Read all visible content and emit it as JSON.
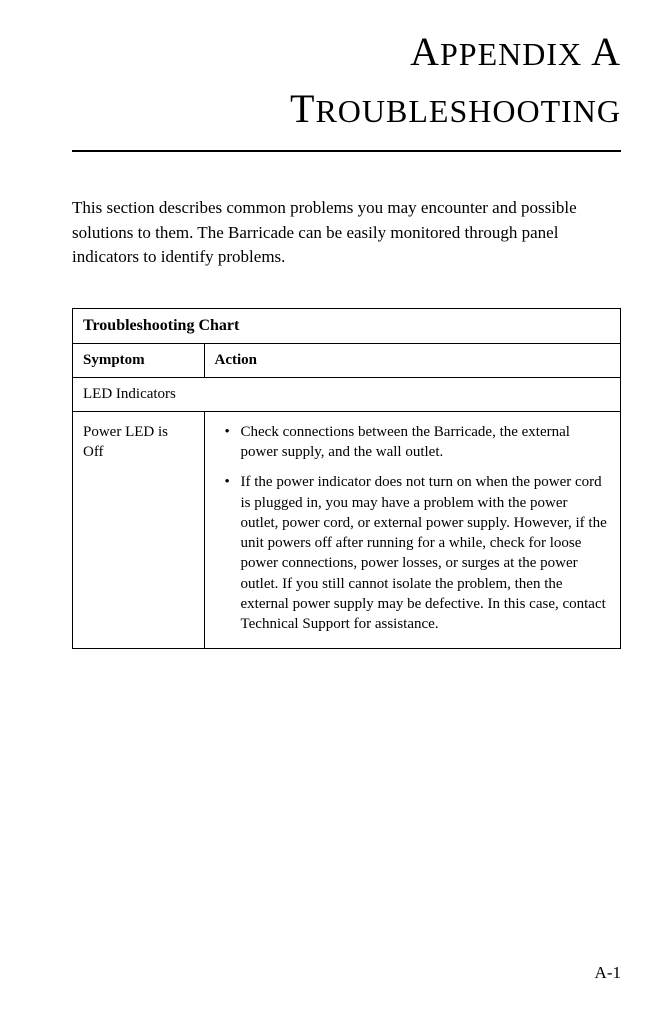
{
  "header": {
    "appendix_prefix_big": "A",
    "appendix_prefix_rest": "PPENDIX",
    "appendix_letter": "A",
    "title_big": "T",
    "title_rest": "ROUBLESHOOTING"
  },
  "intro": "This section describes common problems you may encounter and possible solutions to them. The Barricade can be easily monitored through panel indicators to identify problems.",
  "table": {
    "title": "Troubleshooting Chart",
    "col_symptom": "Symptom",
    "col_action": "Action",
    "section": "LED Indicators",
    "row1_symptom": "Power LED is Off",
    "row1_bullet1": "Check connections between the Barricade, the external power supply, and the wall outlet.",
    "row1_bullet2": "If the power indicator does not turn on when the power cord is plugged in, you may have a problem with the power outlet, power cord, or external power supply. However, if the unit powers off after running for a while, check for loose power connections, power losses, or surges at the power outlet. If you still cannot isolate the problem, then the external power supply may be defective. In this case, contact Technical Support for assistance."
  },
  "page_number": "A-1"
}
